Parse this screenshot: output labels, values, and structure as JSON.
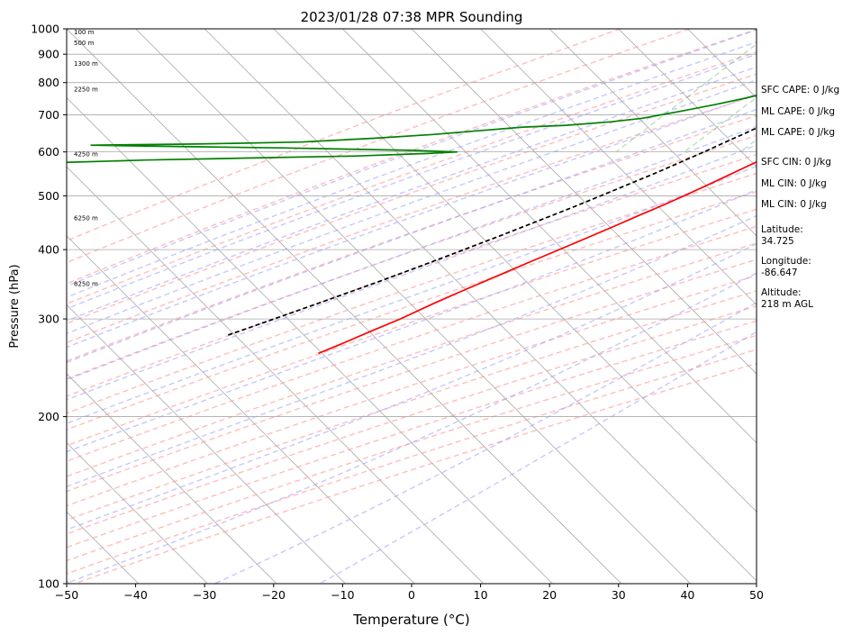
{
  "chart_data": {
    "type": "line",
    "title": "2023/01/28 07:38 MPR Sounding",
    "xlabel": "Temperature (°C)",
    "ylabel": "Pressure (hPa)",
    "xlim": [
      -50,
      50
    ],
    "ylim": [
      1000,
      100
    ],
    "y_scale": "log",
    "x_ticks": [
      -50,
      -40,
      -30,
      -20,
      -10,
      0,
      10,
      20,
      30,
      40,
      50
    ],
    "x_tick_labels": [
      "−50",
      "−40",
      "−30",
      "−20",
      "−10",
      "0",
      "10",
      "20",
      "30",
      "40",
      "50"
    ],
    "y_ticks": [
      100,
      200,
      300,
      400,
      500,
      600,
      700,
      800,
      900,
      1000
    ],
    "y_tick_labels": [
      "100",
      "200",
      "300",
      "400",
      "500",
      "600",
      "700",
      "800",
      "900",
      "1000"
    ],
    "grid": true,
    "series": [
      {
        "color": "#ff0000",
        "pressure": [
          1000,
          995,
          985,
          970,
          955,
          940,
          925,
          905,
          880,
          860,
          840,
          820,
          800,
          780,
          760,
          740,
          720,
          700,
          680,
          660,
          640,
          620,
          600,
          580,
          560,
          540,
          520,
          500,
          480,
          460,
          440,
          420,
          400,
          380,
          360,
          340,
          320,
          300,
          285,
          270,
          260
        ],
        "temperature": [
          2.0,
          6.5,
          7.8,
          7.6,
          6.5,
          5.2,
          3.8,
          2.2,
          1.2,
          0.8,
          0.6,
          0.2,
          -0.3,
          -0.9,
          -1.7,
          -2.4,
          -3.2,
          -4.1,
          -5.1,
          -6.1,
          -7.2,
          -8.3,
          -9.4,
          -10.8,
          -12.2,
          -13.6,
          -15.1,
          -16.7,
          -18.5,
          -20.5,
          -22.5,
          -24.7,
          -27.0,
          -29.5,
          -32.0,
          -34.7,
          -37.4,
          -40.0,
          -42.5,
          -45.0,
          -46.9
        ]
      },
      {
        "color": "#008000",
        "pressure": [
          1000,
          990,
          975,
          960,
          940,
          920,
          905,
          890,
          870,
          850,
          830,
          810,
          790,
          770,
          750,
          730,
          710,
          690,
          680,
          670,
          665,
          655,
          645,
          635,
          625,
          620,
          617,
          613,
          610,
          607,
          604,
          600,
          596,
          590,
          585,
          580,
          574,
          570
        ],
        "dewpoint": [
          -2.2,
          -2.8,
          -3.4,
          -4.2,
          -5.0,
          -6.1,
          -7.5,
          -9.5,
          -12.6,
          -14.8,
          -16.0,
          -16.8,
          -17.5,
          -19.0,
          -22.0,
          -25.5,
          -29.5,
          -34.0,
          -38.0,
          -44.0,
          -50.0,
          -56.0,
          -62.0,
          -70.0,
          -80.0,
          -95.0,
          -110.0,
          -95.0,
          -82.0,
          -72.0,
          -63.0,
          -56.0,
          -60.0,
          -70.0,
          -85.0,
          -100.0,
          -112.0,
          -116.0
        ]
      },
      {
        "color": "#008000",
        "pressure": [
          262,
          262
        ],
        "dewpoint": [
          -110.0,
          -115.5
        ]
      },
      {
        "color": "#000000",
        "pressure": [
          1000,
          975,
          950,
          925,
          900,
          875,
          850,
          825,
          800,
          775,
          750,
          725,
          700,
          675,
          650,
          625,
          600,
          575,
          550,
          525,
          500,
          475,
          450,
          425,
          400,
          375,
          350,
          325,
          300,
          290,
          280
        ],
        "temperature": [
          1.7,
          -1.7,
          -3.6,
          -4.4,
          -5.2,
          -6.0,
          -7.0,
          -8.0,
          -9.0,
          -10.1,
          -11.3,
          -12.5,
          -13.9,
          -15.3,
          -16.8,
          -18.5,
          -20.2,
          -22.1,
          -24.1,
          -26.4,
          -28.8,
          -31.4,
          -34.3,
          -37.4,
          -40.8,
          -44.5,
          -48.6,
          -53.2,
          -58.3,
          -60.5,
          -62.8
        ]
      }
    ],
    "height_labels": [
      "100 m",
      "500 m",
      "1300 m",
      "2250 m",
      "4250 m",
      "6250 m",
      "8250 m"
    ],
    "height_label_pressures": [
      988,
      945,
      868,
      780,
      596,
      457,
      348
    ],
    "background_lines": {
      "isotherms": {
        "color": "#a9a9a9",
        "from": -170,
        "to": 50,
        "step": 10
      },
      "dry_adiabats": {
        "color": "#ff9999",
        "theta_k": [
          223,
          233,
          243,
          253,
          263,
          273,
          283,
          293,
          303,
          313,
          323,
          333,
          343,
          353,
          363,
          373,
          383,
          393,
          403,
          413,
          423,
          433
        ]
      },
      "moist_adiabats": {
        "color": "#9999ff",
        "start_temps_c": [
          -30,
          -25,
          -20,
          -15,
          -10,
          -5,
          0,
          5,
          10,
          15,
          20,
          25,
          30,
          35,
          40,
          45
        ]
      },
      "mixing_ratio": {
        "color": "#66bb66",
        "values_gkg": [
          0.4,
          1,
          2,
          4,
          7,
          10,
          16,
          24,
          32
        ]
      }
    }
  },
  "stats": {
    "sfc_cape": "SFC CAPE: 0 J/kg",
    "ml_cape_1": "ML CAPE: 0 J/kg",
    "ml_cape_2": "ML CAPE: 0 J/kg",
    "sfc_cin": "SFC CIN: 0 J/kg",
    "ml_cin_1": "ML CIN: 0 J/kg",
    "ml_cin_2": "ML CIN: 0 J/kg",
    "latitude": "Latitude:\n34.725",
    "longitude": "Longitude:\n-86.647",
    "altitude": "Altitude:\n218 m AGL"
  }
}
